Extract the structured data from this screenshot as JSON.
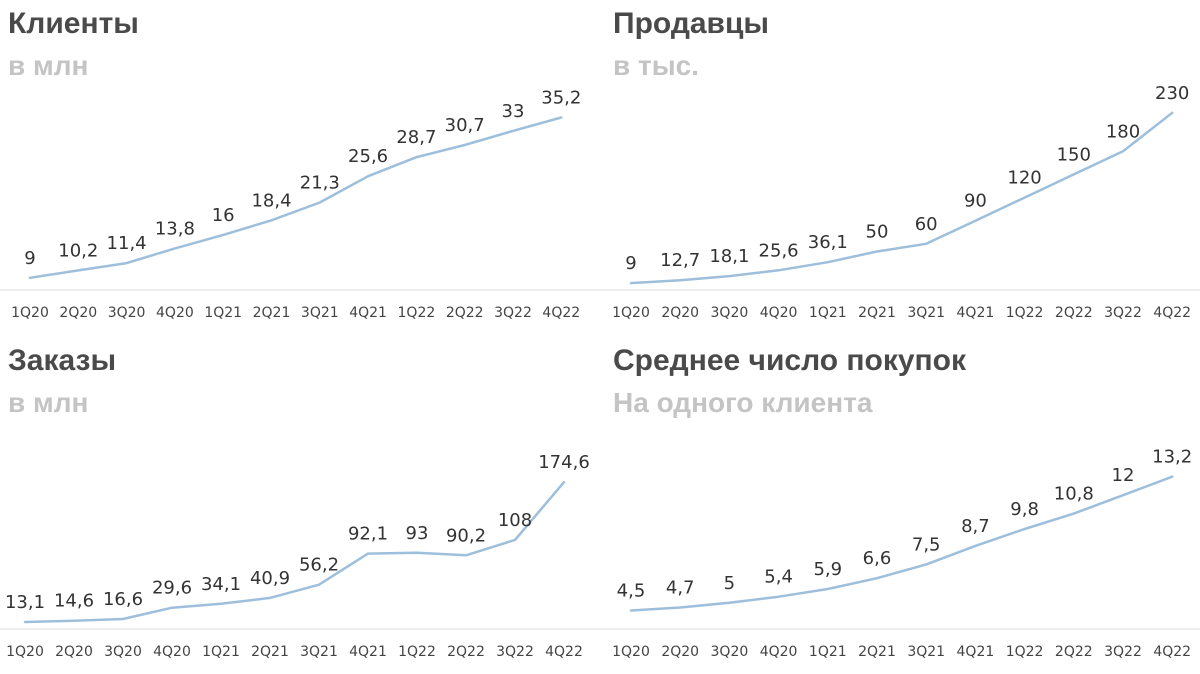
{
  "chart_data": [
    {
      "type": "line",
      "title": "Клиенты",
      "subtitle": "в млн",
      "categories": [
        "1Q20",
        "2Q20",
        "3Q20",
        "4Q20",
        "1Q21",
        "2Q21",
        "3Q21",
        "4Q21",
        "1Q22",
        "2Q22",
        "3Q22",
        "4Q22"
      ],
      "series": [
        {
          "values": [
            9,
            10.2,
            11.4,
            13.8,
            16,
            18.4,
            21.3,
            25.6,
            28.7,
            30.7,
            33,
            35.2
          ]
        }
      ],
      "data_labels": [
        "9",
        "10,2",
        "11,4",
        "13,8",
        "16",
        "18,4",
        "21,3",
        "25,6",
        "28,7",
        "30,7",
        "33",
        "35,2"
      ],
      "ylim": [
        7,
        41
      ],
      "grid": false,
      "line_color": "#9dbfdc"
    },
    {
      "type": "line",
      "title": "Продавцы",
      "subtitle": "в тыс.",
      "categories": [
        "1Q20",
        "2Q20",
        "3Q20",
        "4Q20",
        "1Q21",
        "2Q21",
        "3Q21",
        "4Q21",
        "1Q22",
        "2Q22",
        "3Q22",
        "4Q22"
      ],
      "series": [
        {
          "values": [
            9,
            12.7,
            18.1,
            25.6,
            36.1,
            50,
            60,
            90,
            120,
            150,
            180,
            230
          ]
        }
      ],
      "data_labels": [
        "9",
        "12,7",
        "18,1",
        "25,6",
        "36,1",
        "50",
        "60",
        "90",
        "120",
        "150",
        "180",
        "230"
      ],
      "ylim": [
        0,
        270
      ],
      "grid": false,
      "line_color": "#9dbfdc"
    },
    {
      "type": "line",
      "title": "Заказы",
      "subtitle": "в млн",
      "categories": [
        "1Q20",
        "2Q20",
        "3Q20",
        "4Q20",
        "1Q21",
        "2Q21",
        "3Q21",
        "4Q21",
        "1Q22",
        "2Q22",
        "3Q22",
        "4Q22"
      ],
      "series": [
        {
          "values": [
            13.1,
            14.6,
            16.6,
            29.6,
            34.1,
            40.9,
            56.2,
            92.1,
            93,
            90.2,
            108,
            174.6
          ]
        }
      ],
      "data_labels": [
        "13,1",
        "14,6",
        "16,6",
        "29,6",
        "34,1",
        "40,9",
        "56,2",
        "92,1",
        "93",
        "90,2",
        "108",
        "174,6"
      ],
      "ylim": [
        5,
        213
      ],
      "grid": false,
      "line_color": "#9dbfdc"
    },
    {
      "type": "line",
      "title": "Среднее число покупок",
      "subtitle": "На одного клиента",
      "categories": [
        "1Q20",
        "2Q20",
        "3Q20",
        "4Q20",
        "1Q21",
        "2Q21",
        "3Q21",
        "4Q21",
        "1Q22",
        "2Q22",
        "3Q22",
        "4Q22"
      ],
      "series": [
        {
          "values": [
            4.5,
            4.7,
            5,
            5.4,
            5.9,
            6.6,
            7.5,
            8.7,
            9.8,
            10.8,
            12,
            13.2
          ]
        }
      ],
      "data_labels": [
        "4,5",
        "4,7",
        "5",
        "5,4",
        "5,9",
        "6,6",
        "7,5",
        "8,7",
        "9,8",
        "10,8",
        "12",
        "13,2"
      ],
      "ylim": [
        3.3,
        15
      ],
      "grid": false,
      "line_color": "#9dbfdc"
    }
  ]
}
